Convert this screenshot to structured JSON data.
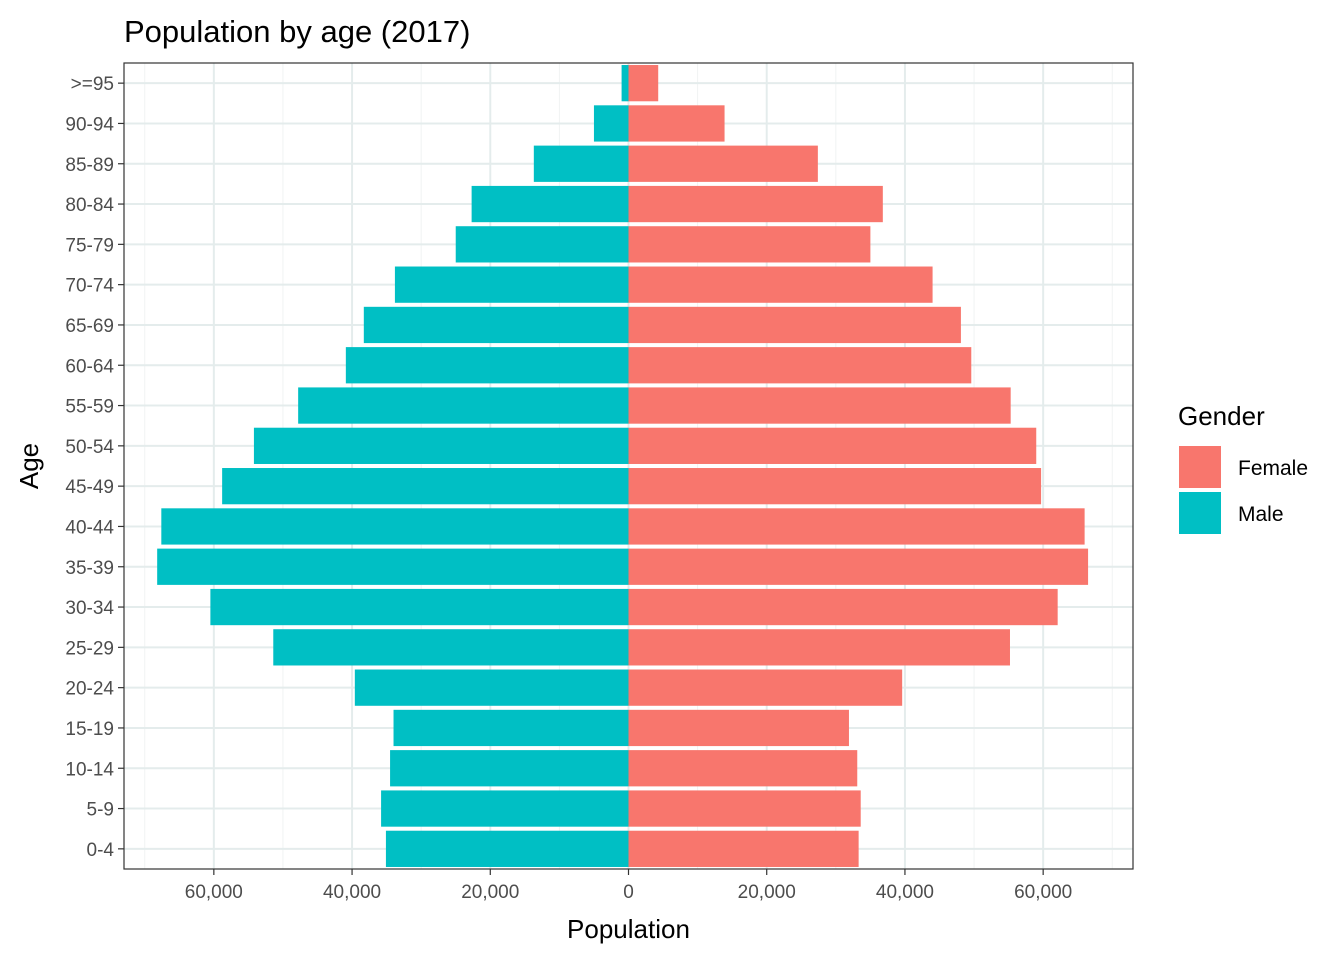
{
  "chart_data": {
    "type": "bar",
    "orientation": "horizontal",
    "title": "Population by age (2017)",
    "xlabel": "Population",
    "ylabel": "Age",
    "categories": [
      "0-4",
      "5-9",
      "10-14",
      "15-19",
      "20-24",
      "25-29",
      "30-34",
      "35-39",
      "40-44",
      "45-49",
      "50-54",
      "55-59",
      "60-64",
      "65-69",
      "70-74",
      "75-79",
      "80-84",
      "85-89",
      "90-94",
      ">=95"
    ],
    "xlim": [
      -73000,
      73000
    ],
    "x_ticks": [
      -60000,
      -40000,
      -20000,
      0,
      20000,
      40000,
      60000
    ],
    "x_tick_labels": [
      "60,000",
      "40,000",
      "20,000",
      "0",
      "20,000",
      "40,000",
      "60,000"
    ],
    "grid": true,
    "legend": {
      "title": "Gender",
      "position": "right"
    },
    "series": [
      {
        "name": "Female",
        "color": "#F8766D",
        "values": [
          33300,
          33600,
          33100,
          31900,
          39600,
          55200,
          62100,
          66500,
          66000,
          59700,
          59000,
          55300,
          49600,
          48100,
          44000,
          35000,
          36800,
          27400,
          13900,
          4300
        ]
      },
      {
        "name": "Male",
        "color": "#00BFC4",
        "values": [
          -35100,
          -35800,
          -34500,
          -34000,
          -39600,
          -51400,
          -60500,
          -68200,
          -67600,
          -58800,
          -54200,
          -47800,
          -40900,
          -38300,
          -33800,
          -25000,
          -22700,
          -13700,
          -5000,
          -1000
        ]
      }
    ]
  }
}
